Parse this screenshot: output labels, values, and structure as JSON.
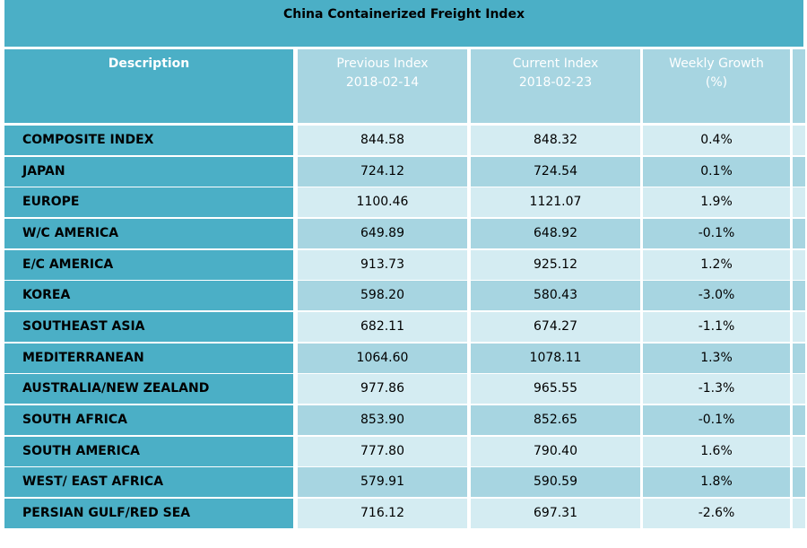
{
  "title": "China Containerized Freight Index",
  "headers": {
    "description": "Description",
    "previous": [
      "Previous Index",
      "2018-02-14"
    ],
    "current": [
      "Current Index",
      "2018-02-23"
    ],
    "growth": [
      "Weekly Growth",
      "(%)"
    ]
  },
  "chart_data": {
    "type": "table",
    "title": "China Containerized Freight Index",
    "columns": [
      "Description",
      "Previous Index 2018-02-14",
      "Current Index 2018-02-23",
      "Weekly Growth (%)"
    ],
    "rows": [
      [
        "COMPOSITE INDEX",
        "844.58",
        "848.32",
        "0.4%"
      ],
      [
        "JAPAN",
        "724.12",
        "724.54",
        "0.1%"
      ],
      [
        "EUROPE",
        "1100.46",
        "1121.07",
        "1.9%"
      ],
      [
        "W/C AMERICA",
        "649.89",
        "648.92",
        "-0.1%"
      ],
      [
        "E/C AMERICA",
        "913.73",
        "925.12",
        "1.2%"
      ],
      [
        "KOREA",
        "598.20",
        "580.43",
        "-3.0%"
      ],
      [
        "SOUTHEAST ASIA",
        "682.11",
        "674.27",
        "-1.1%"
      ],
      [
        "MEDITERRANEAN",
        "1064.60",
        "1078.11",
        "1.3%"
      ],
      [
        "AUSTRALIA/NEW ZEALAND",
        "977.86",
        "965.55",
        "-1.3%"
      ],
      [
        "SOUTH AFRICA",
        "853.90",
        "852.65",
        "-0.1%"
      ],
      [
        "SOUTH AMERICA",
        "777.80",
        "790.40",
        "1.6%"
      ],
      [
        "WEST/ EAST AFRICA",
        "579.91",
        "590.59",
        "1.8%"
      ],
      [
        "PERSIAN GULF/RED SEA",
        "716.12",
        "697.31",
        "-2.6%"
      ]
    ]
  }
}
